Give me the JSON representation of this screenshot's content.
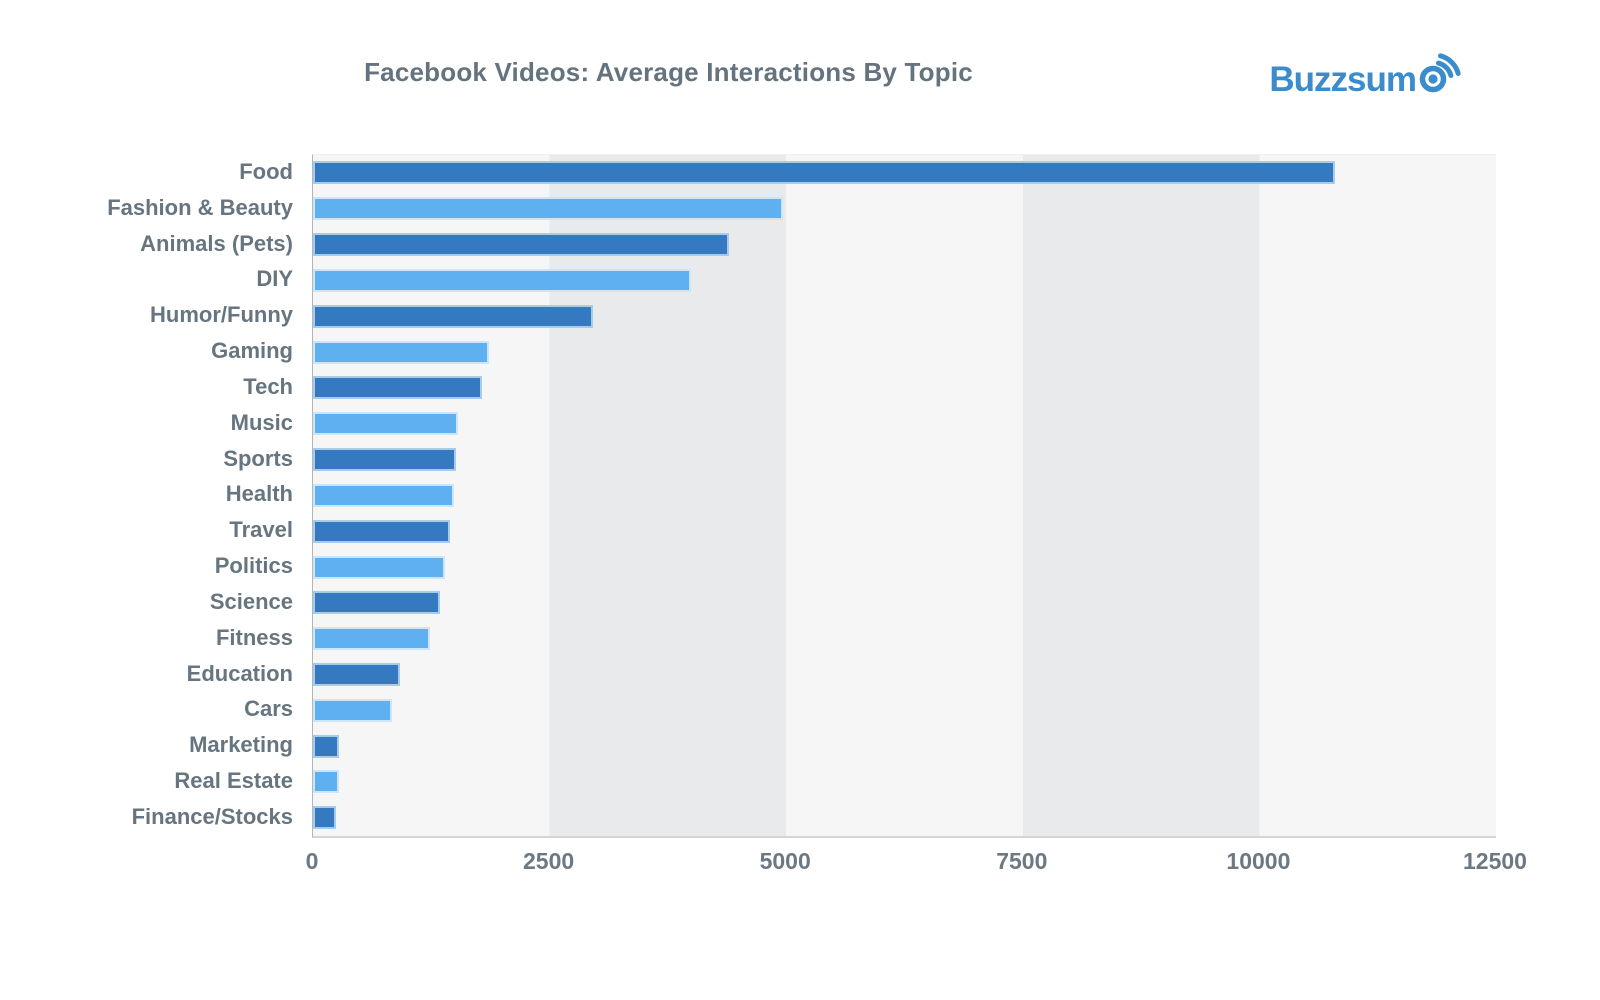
{
  "header": {
    "title": "Facebook Videos: Average Interactions By Topic",
    "logo_text": "Buzzsum",
    "logo_brand": "Buzzsumo"
  },
  "colors": {
    "bar_dark": "#3579c1",
    "bar_light": "#5fb0f0",
    "logo_blue": "#3b8ccd",
    "text_gray": "#66757f",
    "band_light": "#f6f6f7",
    "band_dark": "#e9eaec"
  },
  "chart_data": {
    "type": "bar",
    "orientation": "horizontal",
    "title": "Facebook Videos: Average Interactions By Topic",
    "xlabel": "",
    "ylabel": "",
    "xlim": [
      0,
      12500
    ],
    "x_tick_labels": [
      "0",
      "2500",
      "5000",
      "7500",
      "10000",
      "12500"
    ],
    "grid": "alternating-vertical-bands",
    "legend": "none",
    "categories": [
      "Food",
      "Fashion & Beauty",
      "Animals (Pets)",
      "DIY",
      "Humor/Funny",
      "Gaming",
      "Tech",
      "Music",
      "Sports",
      "Health",
      "Travel",
      "Politics",
      "Science",
      "Fitness",
      "Education",
      "Cars",
      "Marketing",
      "Real Estate",
      "Finance/Stocks"
    ],
    "values": [
      10800,
      4970,
      4400,
      3990,
      2960,
      1860,
      1790,
      1530,
      1510,
      1485,
      1445,
      1400,
      1345,
      1240,
      920,
      830,
      280,
      275,
      240
    ]
  }
}
